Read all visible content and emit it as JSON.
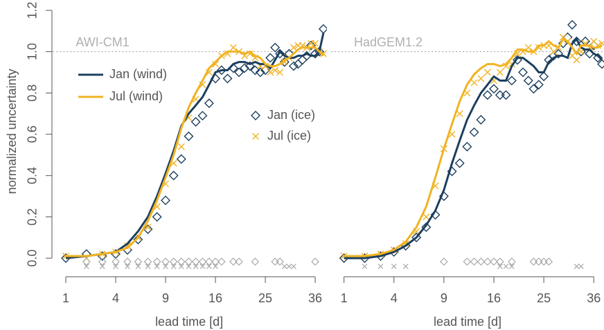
{
  "chart_data": [
    {
      "type": "line",
      "title": "AWI-CM1",
      "ylabel": "normalized uncertainty",
      "xlabel": "lead time [d]",
      "xscale": "sqrt",
      "xlim": [
        0.55,
        38.5
      ],
      "xticks": [
        1,
        4,
        9,
        16,
        25,
        36
      ],
      "ylim": [
        -0.09,
        1.22
      ],
      "yticks": [
        {
          "value": 0,
          "label": "0.0"
        },
        0.2,
        0.4,
        0.6,
        0.8,
        {
          "value": 1,
          "label": "1.0"
        },
        1.2
      ],
      "reference_line": 1,
      "legend": true,
      "x": [
        1,
        2,
        3,
        4,
        5,
        6,
        7,
        8,
        9,
        10,
        11,
        12,
        13,
        14,
        15,
        16,
        17,
        18,
        19,
        20,
        21,
        22,
        23,
        24,
        25,
        26,
        27,
        28,
        29,
        30,
        31,
        32,
        33,
        34,
        35,
        36,
        37,
        38
      ],
      "series": [
        {
          "name": "Jan (wind)",
          "style": "line",
          "color": "#1c3f5e",
          "values": [
            0,
            0.01,
            0.02,
            0.03,
            0.07,
            0.13,
            0.2,
            0.3,
            0.41,
            0.52,
            0.64,
            0.7,
            0.74,
            0.78,
            0.84,
            0.9,
            0.91,
            0.91,
            0.94,
            0.95,
            0.95,
            0.94,
            0.95,
            0.94,
            0.94,
            0.92,
            0.96,
            1.0,
            0.98,
            0.97,
            0.97,
            0.98,
            0.98,
            0.99,
            0.98,
            0.98,
            1.0,
            1.09
          ]
        },
        {
          "name": "Jul (wind)",
          "style": "line",
          "color": "#f0b323",
          "values": [
            0.01,
            0.01,
            0.02,
            0.03,
            0.05,
            0.1,
            0.18,
            0.28,
            0.39,
            0.5,
            0.63,
            0.73,
            0.8,
            0.86,
            0.92,
            0.95,
            0.98,
            1.0,
            1.0,
            1.0,
            0.99,
            1.0,
            0.98,
            0.97,
            0.94,
            0.93,
            0.93,
            0.94,
            0.96,
            0.97,
            0.99,
            1.01,
            1.02,
            1.02,
            1.02,
            1.02,
            1.0,
            0.98
          ]
        },
        {
          "name": "Jan (ice)",
          "style": "diamond",
          "color": "#1c3f5e",
          "values": [
            0,
            0.02,
            0.01,
            0.02,
            0.04,
            0.09,
            0.14,
            0.2,
            0.28,
            0.4,
            0.48,
            0.59,
            0.66,
            0.69,
            0.75,
            0.87,
            0.91,
            0.87,
            0.92,
            0.9,
            0.92,
            0.93,
            0.91,
            0.9,
            0.91,
            0.97,
            1.02,
            0.99,
            0.95,
            0.99,
            0.93,
            0.94,
            0.96,
            0.98,
            1.03,
            0.99,
            1.0,
            1.11
          ]
        },
        {
          "name": "Jul (ice)",
          "style": "cross",
          "color": "#f0b323",
          "values": [
            0.01,
            0,
            0.02,
            0.03,
            0.06,
            0.1,
            0.15,
            0.25,
            0.36,
            0.46,
            0.54,
            0.68,
            0.77,
            0.84,
            0.9,
            0.94,
            0.98,
            0.99,
            1.02,
            1.0,
            0.98,
            0.99,
            0.97,
            0.93,
            0.93,
            0.9,
            0.91,
            0.9,
            0.95,
            0.97,
            1.02,
            1.03,
            1.03,
            1.02,
            1.04,
            1.04,
            1.0,
            0.99
          ]
        }
      ],
      "significance": [
        {
          "style": "diamond",
          "color": "#aaaaaa",
          "level": -0.017,
          "days": [
            2,
            3,
            4,
            5,
            6,
            7,
            8,
            9,
            10,
            11,
            12,
            13,
            14,
            15,
            16,
            17,
            19,
            20,
            23,
            27,
            28,
            36
          ]
        },
        {
          "style": "cross",
          "color": "#aaaaaa",
          "level": -0.04,
          "days": [
            2,
            3,
            4,
            5,
            6,
            7,
            8,
            9,
            10,
            11,
            12,
            13,
            14,
            15,
            16,
            29,
            30,
            31
          ]
        }
      ]
    },
    {
      "type": "line",
      "title": "HadGEM1.2",
      "xlabel": "lead time [d]",
      "xscale": "sqrt",
      "xlim": [
        0.55,
        38.5
      ],
      "xticks": [
        1,
        4,
        9,
        16,
        25,
        36
      ],
      "ylim": [
        -0.09,
        1.22
      ],
      "reference_line": 1,
      "legend": false,
      "x": [
        1,
        2,
        3,
        4,
        5,
        6,
        7,
        8,
        9,
        10,
        11,
        12,
        13,
        14,
        15,
        16,
        17,
        18,
        19,
        20,
        21,
        22,
        23,
        24,
        25,
        26,
        27,
        28,
        29,
        30,
        31,
        32,
        33,
        34,
        35,
        36,
        37,
        38
      ],
      "series": [
        {
          "style": "line",
          "color": "#1c3f5e",
          "values": [
            0,
            0,
            0.01,
            0.03,
            0.06,
            0.1,
            0.16,
            0.23,
            0.33,
            0.46,
            0.57,
            0.67,
            0.74,
            0.8,
            0.84,
            0.88,
            0.86,
            0.86,
            0.93,
            0.97,
            0.97,
            0.95,
            0.93,
            0.9,
            0.9,
            0.95,
            0.97,
            0.98,
            0.98,
            0.97,
            1.04,
            1.06,
            1.02,
            1.01,
            1.01,
            0.99,
            0.98,
            0.96
          ]
        },
        {
          "style": "line",
          "color": "#f0b323",
          "values": [
            0.01,
            0.01,
            0.02,
            0.04,
            0.08,
            0.15,
            0.25,
            0.39,
            0.53,
            0.65,
            0.76,
            0.84,
            0.89,
            0.92,
            0.94,
            0.94,
            0.93,
            0.94,
            0.97,
            1.01,
            1.01,
            1.0,
            1.0,
            1.03,
            1.03,
            1.05,
            1.03,
            1.02,
            1.06,
            1.05,
            1.02,
            0.99,
            1.03,
            1.03,
            1.03,
            1.02,
            1.02,
            1.03
          ]
        },
        {
          "style": "diamond",
          "color": "#1c3f5e",
          "values": [
            0,
            0,
            0.01,
            0.03,
            0.06,
            0.1,
            0.15,
            0.21,
            0.3,
            0.42,
            0.46,
            0.54,
            0.61,
            0.67,
            0.79,
            0.82,
            0.79,
            0.79,
            0.86,
            0.96,
            0.9,
            0.86,
            0.82,
            0.84,
            0.88,
            0.96,
            0.98,
            0.99,
            1.04,
            1.07,
            1.13,
            1.05,
            1.0,
            1.05,
            0.99,
            1.03,
            0.97,
            0.94
          ]
        },
        {
          "style": "cross",
          "color": "#f0b323",
          "values": [
            0.01,
            0.01,
            0.02,
            0.04,
            0.07,
            0.13,
            0.2,
            0.35,
            0.53,
            0.6,
            0.7,
            0.8,
            0.85,
            0.87,
            0.9,
            0.86,
            0.9,
            0.93,
            0.94,
            0.99,
            1.0,
            1.02,
            1.0,
            1.02,
            1.03,
            1.03,
            1.0,
            1.02,
            1.07,
            1.05,
            0.98,
            0.96,
            1.0,
            1.04,
            1.02,
            1.05,
            1.03,
            1.04
          ]
        }
      ],
      "significance": [
        {
          "style": "diamond",
          "color": "#aaaaaa",
          "level": -0.017,
          "days": [
            9,
            12,
            13,
            14,
            15,
            16,
            17,
            19,
            23,
            24,
            25,
            26
          ]
        },
        {
          "style": "cross",
          "color": "#aaaaaa",
          "level": -0.04,
          "days": [
            2,
            3,
            4,
            5,
            17,
            18,
            19,
            32,
            33
          ]
        }
      ]
    }
  ]
}
